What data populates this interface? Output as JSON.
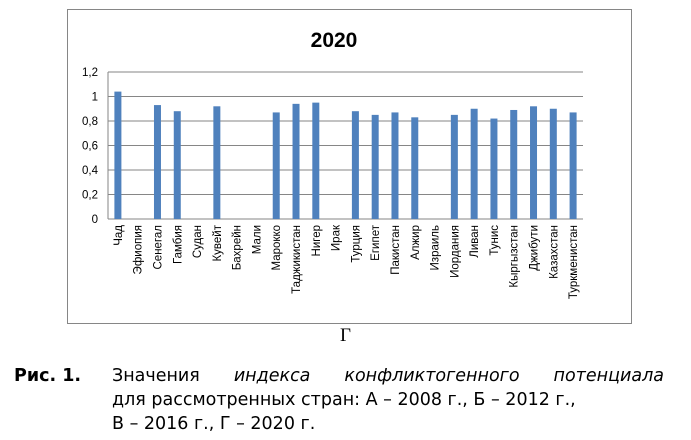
{
  "chart_data": {
    "type": "bar",
    "title": "2020",
    "categories": [
      "Чад",
      "Эфиопия",
      "Сенегал",
      "Гамбия",
      "Судан",
      "Кувейт",
      "Бахрейн",
      "Мали",
      "Марокко",
      "Таджикистан",
      "Нигер",
      "Ирак",
      "Турция",
      "Египет",
      "Пакистан",
      "Алжир",
      "Израиль",
      "Иордания",
      "Ливан",
      "Тунис",
      "Кыргызстан",
      "Джибути",
      "Казахстан",
      "Туркменистан"
    ],
    "values": [
      1.04,
      null,
      0.93,
      0.88,
      null,
      0.92,
      null,
      null,
      0.87,
      0.94,
      0.95,
      null,
      0.88,
      0.85,
      0.87,
      0.83,
      null,
      0.85,
      0.9,
      0.82,
      0.89,
      0.92,
      0.9,
      0.87
    ],
    "ylim": [
      0,
      1.2
    ],
    "yticks": [
      "0",
      "0,2",
      "0,4",
      "0,6",
      "0,8",
      "1",
      "1,2"
    ],
    "grid": true,
    "bar_color": "#4f81bd",
    "xlabel": "",
    "ylabel": ""
  },
  "panel_label": "Г",
  "caption": {
    "prefix": "Рис.  1.",
    "words_line1": [
      "Значения"
    ],
    "italic_words_line1": [
      "индекса",
      "конфликтогенного",
      "потенциала"
    ],
    "line2": "для рассмотренных стран: А – 2008 г., Б – 2012 г.,",
    "line3": "В – 2016 г., Г – 2020 г."
  }
}
